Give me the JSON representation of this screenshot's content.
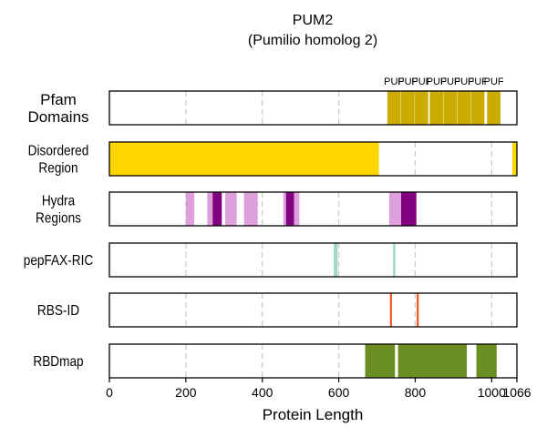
{
  "chart_data": {
    "type": "bar",
    "title": "PUM2",
    "subtitle": "(Pumilio homolog 2)",
    "xlabel": "Protein Length",
    "xlim": [
      0,
      1066
    ],
    "xticks": [
      0,
      200,
      400,
      600,
      800,
      1000,
      1066
    ],
    "xtick_labels": [
      "0",
      "200",
      "400",
      "600",
      "800",
      "1000",
      "1066"
    ],
    "grid": "vertical-dashed",
    "tracks": [
      {
        "label_lines": [
          "Pfam",
          "Domains"
        ],
        "color": "#ccac00",
        "segments": [
          {
            "start": 727,
            "end": 762,
            "label": "PUF"
          },
          {
            "start": 763,
            "end": 798,
            "label": "PUF"
          },
          {
            "start": 799,
            "end": 834,
            "label": "PUF"
          },
          {
            "start": 838,
            "end": 873,
            "label": "PUF"
          },
          {
            "start": 874,
            "end": 909,
            "label": "PUF"
          },
          {
            "start": 910,
            "end": 945,
            "label": "PUF"
          },
          {
            "start": 946,
            "end": 981,
            "label": "PUF"
          },
          {
            "start": 988,
            "end": 1023,
            "label": "PUF"
          }
        ]
      },
      {
        "label_lines": [
          "Disordered",
          "Region"
        ],
        "color": "#ffd700",
        "segments": [
          {
            "start": 0,
            "end": 705
          },
          {
            "start": 1054,
            "end": 1066
          }
        ]
      },
      {
        "label_lines": [
          "Hydra",
          "Regions"
        ],
        "segments": [
          {
            "start": 200,
            "end": 222,
            "color": "#dda0dd"
          },
          {
            "start": 256,
            "end": 270,
            "color": "#dda0dd"
          },
          {
            "start": 270,
            "end": 294,
            "color": "#800080"
          },
          {
            "start": 303,
            "end": 333,
            "color": "#dda0dd"
          },
          {
            "start": 352,
            "end": 388,
            "color": "#dda0dd"
          },
          {
            "start": 455,
            "end": 462,
            "color": "#dda0dd"
          },
          {
            "start": 462,
            "end": 483,
            "color": "#800080"
          },
          {
            "start": 483,
            "end": 497,
            "color": "#dda0dd"
          },
          {
            "start": 732,
            "end": 763,
            "color": "#dda0dd"
          },
          {
            "start": 763,
            "end": 803,
            "color": "#800080"
          }
        ]
      },
      {
        "label_lines": [
          "pepFAX-RIC"
        ],
        "color": "#9ed8c5",
        "segments": [
          {
            "start": 587,
            "end": 597
          },
          {
            "start": 742,
            "end": 748
          }
        ]
      },
      {
        "label_lines": [
          "RBS-ID"
        ],
        "color": "#ee4f1c",
        "segments": [
          {
            "start": 734,
            "end": 739
          },
          {
            "start": 804,
            "end": 809
          }
        ]
      },
      {
        "label_lines": [
          "RBDmap"
        ],
        "color": "#6b8e23",
        "segments": [
          {
            "start": 669,
            "end": 747
          },
          {
            "start": 755,
            "end": 935
          },
          {
            "start": 960,
            "end": 1013
          }
        ]
      }
    ]
  }
}
